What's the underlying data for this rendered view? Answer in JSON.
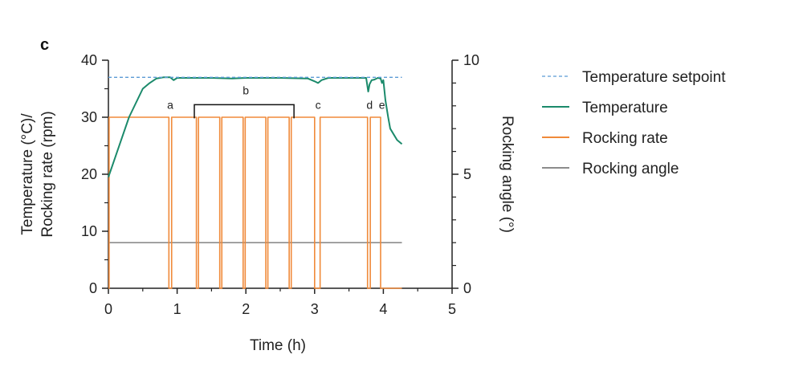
{
  "panel_label": "c",
  "colors": {
    "setpoint": "#5b9bd5",
    "temperature": "#1b8a6b",
    "rocking_rate": "#f08a3a",
    "rocking_angle": "#8c8c8c",
    "axis": "#222222"
  },
  "chart_data": {
    "type": "line",
    "xlabel": "Time (h)",
    "ylabel_line1": "Temperature (°C)/",
    "ylabel_line2": "Rocking rate (rpm)",
    "y2label": "Rocking angle (°)",
    "xlim": [
      0,
      5
    ],
    "ylim": [
      0,
      40
    ],
    "y2lim": [
      0,
      10
    ],
    "xticks": [
      "0",
      "1",
      "2",
      "3",
      "4",
      "5"
    ],
    "yticks": [
      "0",
      "10",
      "20",
      "30",
      "40"
    ],
    "y2ticks": [
      "0",
      "5",
      "10"
    ],
    "legend": [
      {
        "key": "setpoint",
        "label": "Temperature setpoint",
        "style": "dashed"
      },
      {
        "key": "temperature",
        "label": "Temperature",
        "style": "solid"
      },
      {
        "key": "rocking_rate",
        "label": "Rocking rate",
        "style": "solid"
      },
      {
        "key": "rocking_angle",
        "label": "Rocking angle",
        "style": "solid"
      }
    ],
    "series": [
      {
        "name": "Temperature setpoint",
        "key": "setpoint",
        "axis": "left",
        "x": [
          0,
          4.27
        ],
        "y": [
          37,
          37
        ]
      },
      {
        "name": "Temperature",
        "key": "temperature",
        "axis": "left",
        "x": [
          0,
          0.1,
          0.2,
          0.3,
          0.4,
          0.5,
          0.6,
          0.7,
          0.8,
          0.9,
          0.95,
          1.0,
          1.2,
          1.5,
          1.8,
          2.0,
          2.5,
          2.9,
          3.0,
          3.05,
          3.1,
          3.2,
          3.5,
          3.75,
          3.78,
          3.8,
          3.83,
          3.87,
          3.92,
          3.96,
          3.98,
          4.0,
          4.03,
          4.07,
          4.1,
          4.15,
          4.2,
          4.27
        ],
        "y": [
          19.5,
          23,
          26.5,
          30,
          32.5,
          35,
          36,
          36.8,
          37,
          37,
          36.5,
          36.9,
          36.9,
          36.9,
          36.8,
          36.9,
          36.9,
          36.8,
          36.3,
          36,
          36.5,
          36.9,
          36.9,
          36.9,
          34.5,
          35.8,
          36.5,
          36.6,
          36.9,
          36.8,
          36,
          36.5,
          33,
          30,
          28,
          27,
          26,
          25.3
        ]
      },
      {
        "name": "Rocking rate",
        "key": "rocking_rate",
        "axis": "left",
        "step": true,
        "x": [
          0,
          0.01,
          0.01,
          0.88,
          0.88,
          0.92,
          0.92,
          1.28,
          1.28,
          1.31,
          1.31,
          1.62,
          1.62,
          1.65,
          1.65,
          1.96,
          1.96,
          1.99,
          1.99,
          2.29,
          2.29,
          2.32,
          2.32,
          2.63,
          2.63,
          2.66,
          2.66,
          3.0,
          3.0,
          3.08,
          3.08,
          3.77,
          3.77,
          3.81,
          3.81,
          3.96,
          3.96,
          4.27
        ],
        "y": [
          0,
          0,
          30,
          30,
          0,
          0,
          30,
          30,
          0,
          0,
          30,
          30,
          0,
          0,
          30,
          30,
          0,
          0,
          30,
          30,
          0,
          0,
          30,
          30,
          0,
          0,
          30,
          30,
          0,
          0,
          30,
          30,
          0,
          0,
          30,
          30,
          0,
          0
        ]
      },
      {
        "name": "Rocking angle",
        "key": "rocking_angle",
        "axis": "right",
        "x": [
          0,
          4.27
        ],
        "y": [
          2,
          2
        ]
      }
    ],
    "annotations": [
      {
        "label": "a",
        "x": 0.9,
        "y": 31.5
      },
      {
        "label": "b",
        "x": 2.0,
        "y": 34,
        "bracket": [
          1.25,
          2.7
        ]
      },
      {
        "label": "c",
        "x": 3.05,
        "y": 31.5
      },
      {
        "label": "d",
        "x": 3.8,
        "y": 31.5
      },
      {
        "label": "e",
        "x": 3.98,
        "y": 31.5
      }
    ]
  }
}
